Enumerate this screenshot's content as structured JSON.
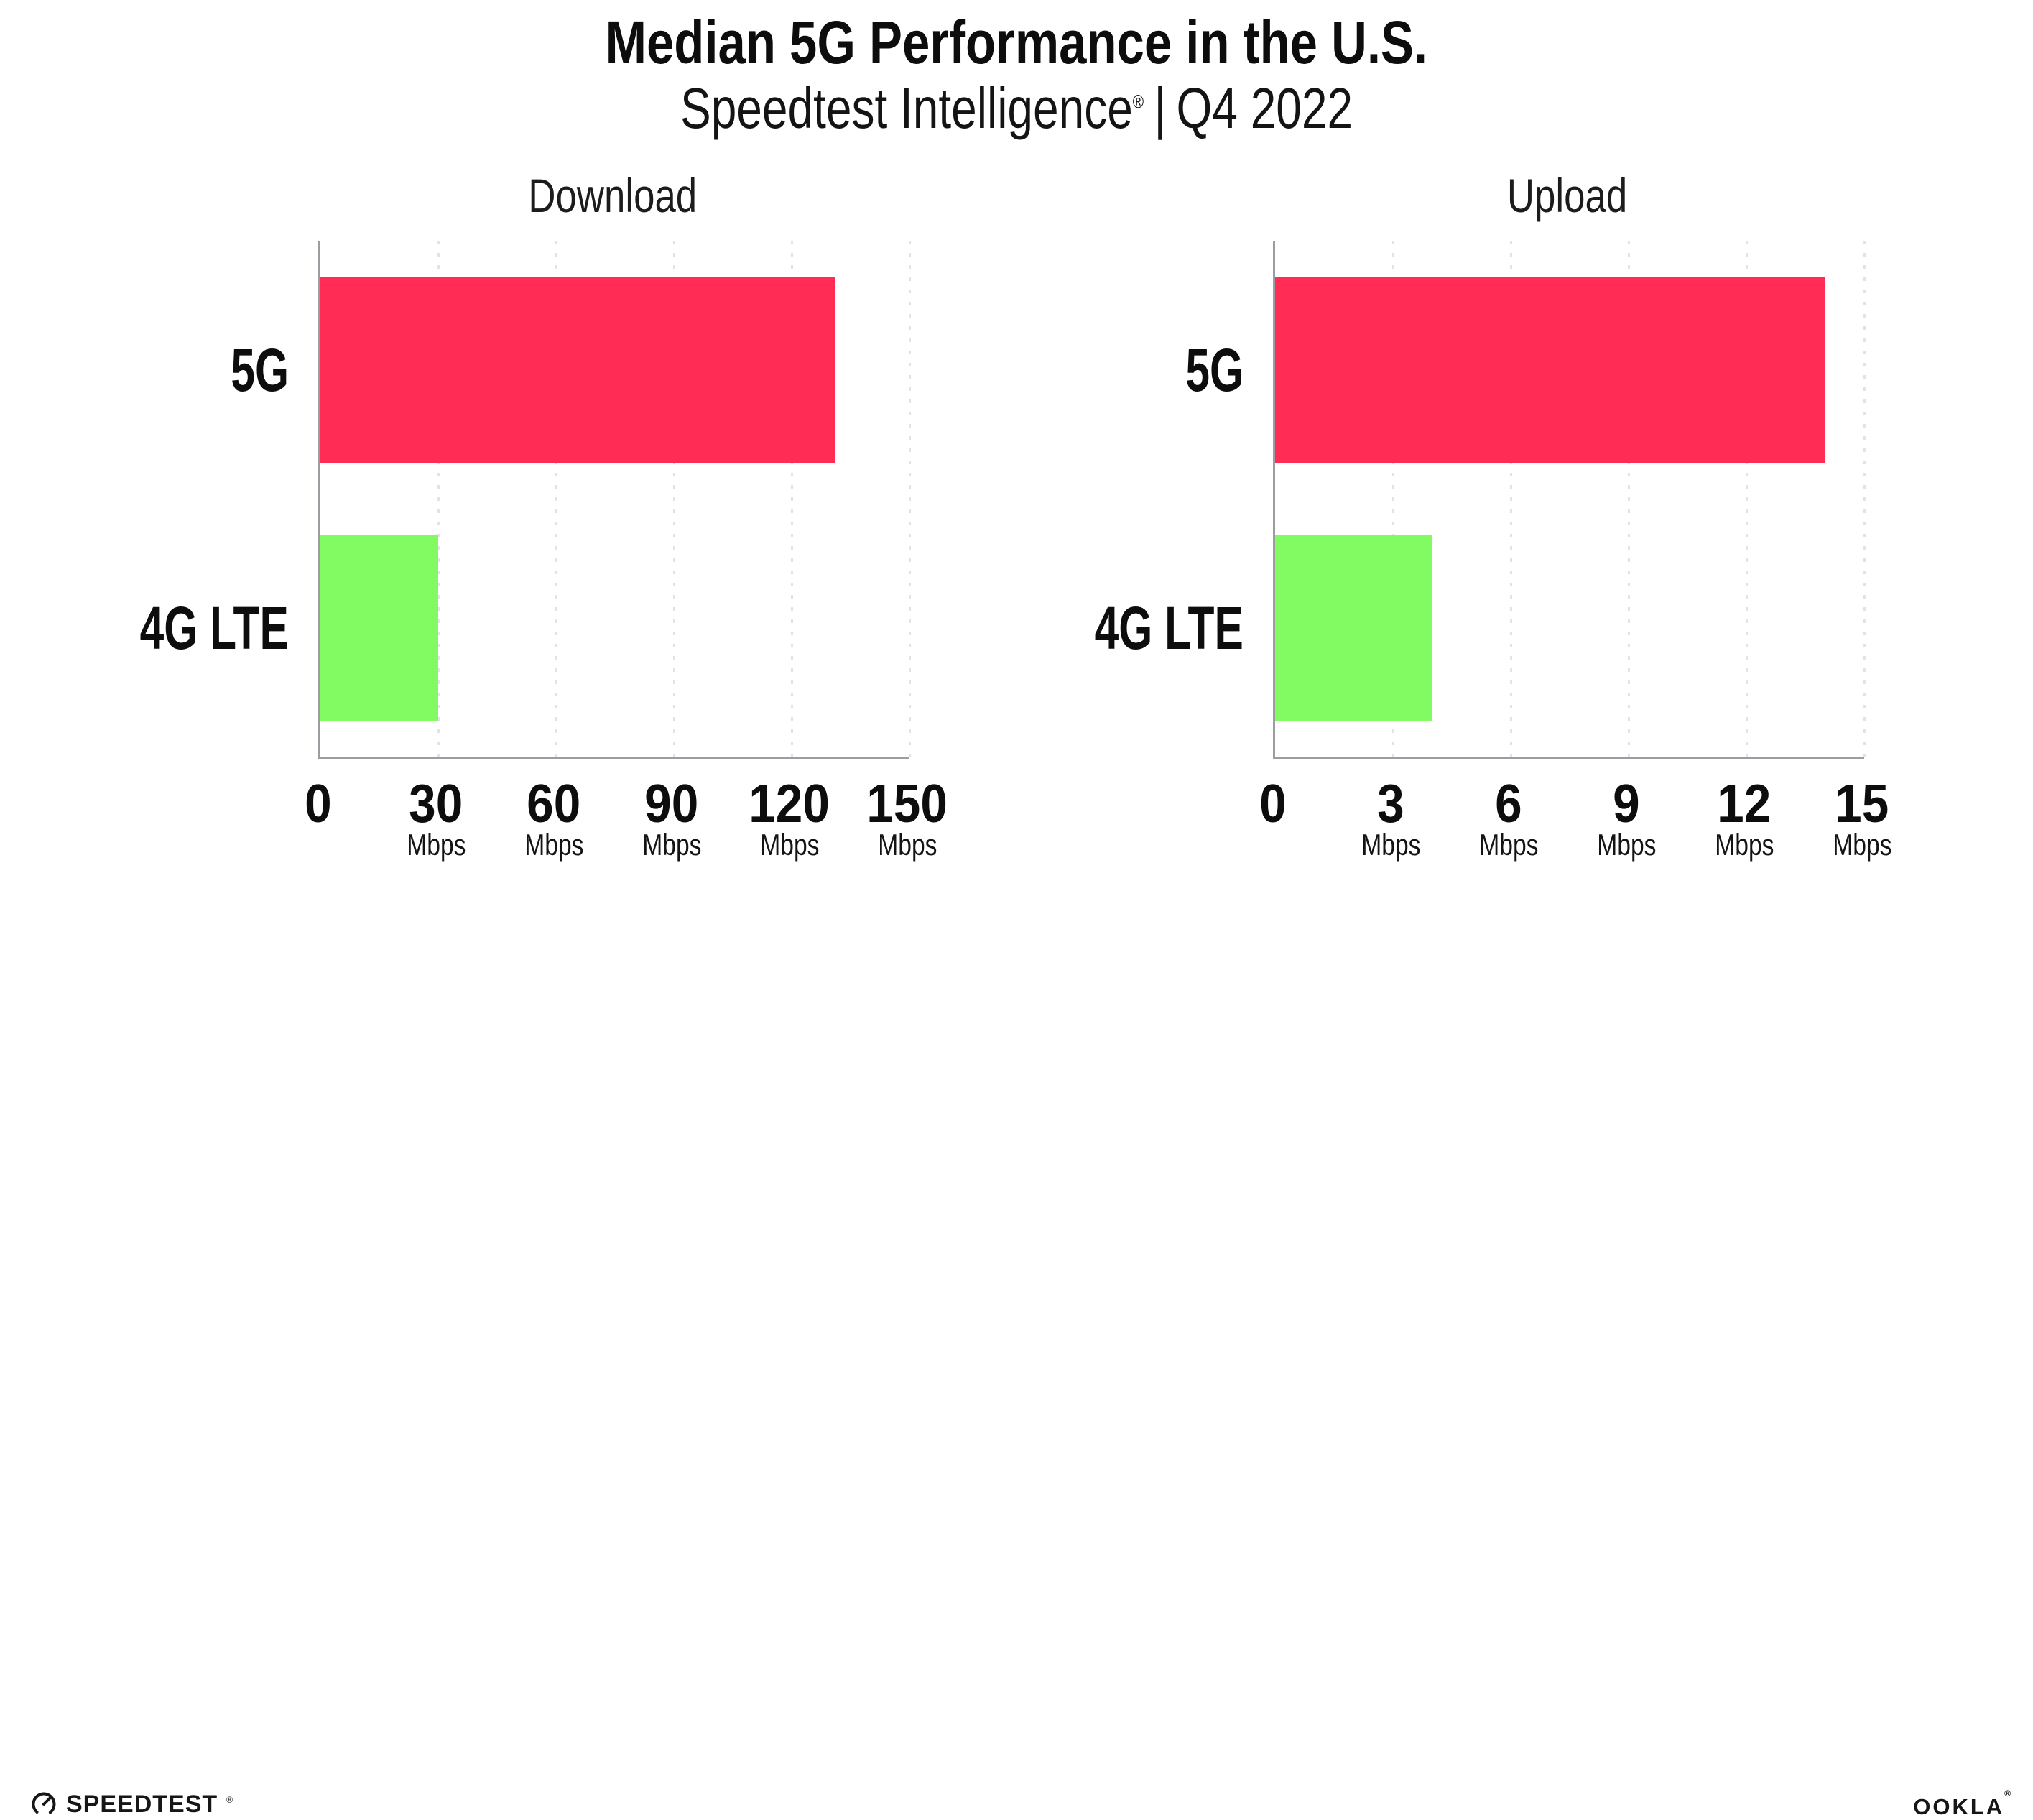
{
  "header": {
    "title": "Median 5G Performance in the U.S.",
    "subtitle_brand": "Speedtest Intelligence",
    "subtitle_registered_mark": "®",
    "subtitle_separator": "|",
    "subtitle_period": "Q4 2022"
  },
  "chart_data": [
    {
      "type": "bar",
      "orientation": "horizontal",
      "title": "Download",
      "categories": [
        "5G",
        "4G LTE"
      ],
      "values": [
        131,
        30
      ],
      "value_unit": "Mbps",
      "xlim": [
        0,
        150
      ],
      "xticks": [
        0,
        30,
        60,
        90,
        120,
        150
      ],
      "xtick_unit_label": "Mbps",
      "bar_colors": [
        "#FF2D55",
        "#82FB63"
      ],
      "grid": "vertical-dotted",
      "legend": "none"
    },
    {
      "type": "bar",
      "orientation": "horizontal",
      "title": "Upload",
      "categories": [
        "5G",
        "4G LTE"
      ],
      "values": [
        14,
        4
      ],
      "value_unit": "Mbps",
      "xlim": [
        0,
        15
      ],
      "xticks": [
        0,
        3,
        6,
        9,
        12,
        15
      ],
      "xtick_unit_label": "Mbps",
      "bar_colors": [
        "#FF2D55",
        "#82FB63"
      ],
      "grid": "vertical-dotted",
      "legend": "none"
    }
  ],
  "footer": {
    "speedtest_wordmark": "SPEEDTEST",
    "speedtest_registered_mark": "®",
    "speedtest_icon": "gauge-icon",
    "ookla_wordmark": "OOKLA",
    "ookla_registered_mark": "®"
  },
  "colors": {
    "bar_5g": "#FF2D55",
    "bar_4g_lte": "#82FB63",
    "axis": "#9C9CA2",
    "gridline": "#E2E2EC",
    "text": "#0D0D0D",
    "background": "#FFFFFF"
  }
}
